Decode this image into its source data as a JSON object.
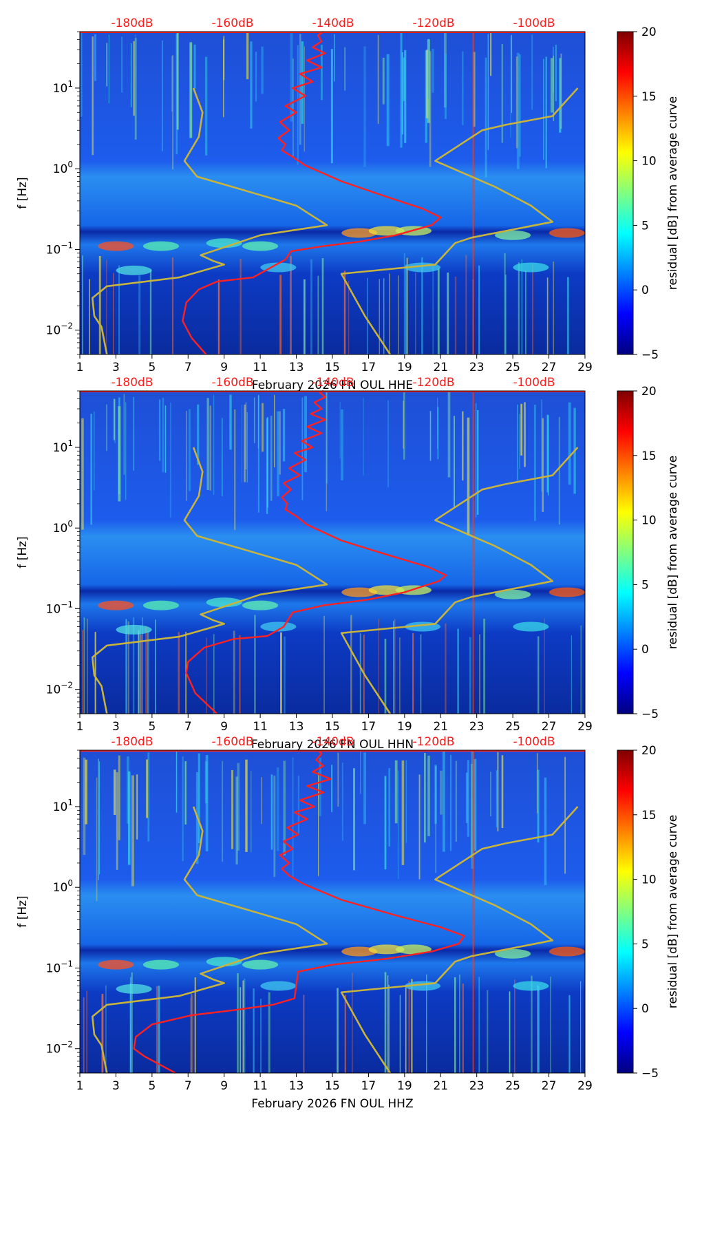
{
  "chart_data": [
    {
      "type": "heatmap",
      "component": "HHE",
      "xlabel": "February 2026 FN OUL  HHE",
      "ylabel": "f [Hz]",
      "x_ticks": [
        "1",
        "3",
        "5",
        "7",
        "9",
        "11",
        "13",
        "15",
        "17",
        "19",
        "21",
        "23",
        "25",
        "27",
        "29"
      ],
      "x_range": [
        1,
        29
      ],
      "y_range_hz": [
        0.005,
        50
      ],
      "y_ticks": [
        {
          "exp": -2,
          "value": 0.01
        },
        {
          "exp": -1,
          "value": 0.1
        },
        {
          "exp": 0,
          "value": 1
        },
        {
          "exp": 1,
          "value": 10
        }
      ],
      "top_ticks": [
        "-180dB",
        "-160dB",
        "-140dB",
        "-120dB",
        "-100dB"
      ],
      "colorbar": {
        "label": "residual [dB] from average curve",
        "ticks": [
          "−5",
          "0",
          "5",
          "10",
          "15",
          "20"
        ],
        "range": [
          -5,
          20
        ]
      },
      "series": [
        {
          "name": "average PSD",
          "color": "#ff2020",
          "points": [
            [
              8.0,
              0.005
            ],
            [
              7.2,
              0.008
            ],
            [
              6.7,
              0.013
            ],
            [
              6.9,
              0.022
            ],
            [
              7.6,
              0.032
            ],
            [
              8.6,
              0.04
            ],
            [
              10.6,
              0.045
            ],
            [
              11.6,
              0.06
            ],
            [
              12.4,
              0.075
            ],
            [
              12.7,
              0.095
            ],
            [
              14.5,
              0.11
            ],
            [
              16.5,
              0.125
            ],
            [
              18.5,
              0.15
            ],
            [
              20.5,
              0.2
            ],
            [
              21.0,
              0.25
            ],
            [
              20.0,
              0.32
            ],
            [
              18.0,
              0.45
            ],
            [
              15.5,
              0.7
            ],
            [
              13.5,
              1.1
            ],
            [
              12.8,
              1.4
            ],
            [
              12.2,
              1.7
            ],
            [
              12.4,
              2.0
            ],
            [
              12.0,
              2.4
            ],
            [
              12.6,
              3.0
            ],
            [
              12.1,
              3.8
            ],
            [
              13.0,
              5.0
            ],
            [
              12.4,
              6.0
            ],
            [
              13.5,
              8.0
            ],
            [
              12.8,
              10.0
            ],
            [
              13.9,
              12.0
            ],
            [
              13.2,
              15.0
            ],
            [
              14.4,
              18.0
            ],
            [
              13.6,
              22.0
            ],
            [
              14.6,
              27.0
            ],
            [
              13.9,
              32.0
            ],
            [
              14.4,
              38.0
            ],
            [
              14.2,
              45.0
            ],
            [
              14.5,
              50.0
            ]
          ]
        },
        {
          "name": "noise model lower",
          "color": "#c8b43c",
          "points": [
            [
              7.3,
              10.0
            ],
            [
              7.8,
              5.0
            ],
            [
              7.6,
              2.5
            ],
            [
              6.8,
              1.25
            ],
            [
              7.5,
              0.8
            ],
            [
              10.0,
              0.55
            ],
            [
              13.0,
              0.35
            ],
            [
              14.7,
              0.2
            ],
            [
              11.0,
              0.15
            ],
            [
              7.7,
              0.085
            ],
            [
              8.4,
              0.072
            ],
            [
              9.0,
              0.065
            ],
            [
              6.5,
              0.045
            ],
            [
              2.5,
              0.035
            ],
            [
              1.7,
              0.025
            ],
            [
              1.8,
              0.015
            ],
            [
              2.2,
              0.011
            ],
            [
              2.5,
              0.005
            ]
          ]
        },
        {
          "name": "noise model upper",
          "color": "#c8b43c",
          "points": [
            [
              28.6,
              10.0
            ],
            [
              27.2,
              4.5
            ],
            [
              24.6,
              3.5
            ],
            [
              23.3,
              3.0
            ],
            [
              20.7,
              1.25
            ],
            [
              24.0,
              0.6
            ],
            [
              26.0,
              0.35
            ],
            [
              27.2,
              0.22
            ],
            [
              25.2,
              0.18
            ],
            [
              22.7,
              0.14
            ],
            [
              21.8,
              0.12
            ],
            [
              20.7,
              0.065
            ],
            [
              15.5,
              0.05
            ],
            [
              16.8,
              0.015
            ],
            [
              18.2,
              0.005
            ]
          ]
        }
      ]
    },
    {
      "type": "heatmap",
      "component": "HHN",
      "xlabel": "February 2026 FN OUL  HHN",
      "ylabel": "f [Hz]",
      "x_ticks": [
        "1",
        "3",
        "5",
        "7",
        "9",
        "11",
        "13",
        "15",
        "17",
        "19",
        "21",
        "23",
        "25",
        "27",
        "29"
      ],
      "x_range": [
        1,
        29
      ],
      "y_range_hz": [
        0.005,
        50
      ],
      "y_ticks": [
        {
          "exp": -2,
          "value": 0.01
        },
        {
          "exp": -1,
          "value": 0.1
        },
        {
          "exp": 0,
          "value": 1
        },
        {
          "exp": 1,
          "value": 10
        }
      ],
      "top_ticks": [
        "-180dB",
        "-160dB",
        "-140dB",
        "-120dB",
        "-100dB"
      ],
      "colorbar": {
        "label": "residual [dB] from average curve",
        "ticks": [
          "−5",
          "0",
          "5",
          "10",
          "15",
          "20"
        ],
        "range": [
          -5,
          20
        ]
      },
      "series": [
        {
          "name": "average PSD",
          "color": "#ff2020",
          "points": [
            [
              8.6,
              0.005
            ],
            [
              7.4,
              0.009
            ],
            [
              6.9,
              0.016
            ],
            [
              7.0,
              0.022
            ],
            [
              7.9,
              0.033
            ],
            [
              9.5,
              0.042
            ],
            [
              11.4,
              0.046
            ],
            [
              12.3,
              0.06
            ],
            [
              12.8,
              0.09
            ],
            [
              14.5,
              0.11
            ],
            [
              17.0,
              0.13
            ],
            [
              19.0,
              0.16
            ],
            [
              20.9,
              0.22
            ],
            [
              21.3,
              0.26
            ],
            [
              20.3,
              0.33
            ],
            [
              18.0,
              0.47
            ],
            [
              15.5,
              0.7
            ],
            [
              13.6,
              1.1
            ],
            [
              13.0,
              1.4
            ],
            [
              12.4,
              1.7
            ],
            [
              12.5,
              2.0
            ],
            [
              12.2,
              2.4
            ],
            [
              12.7,
              3.0
            ],
            [
              12.3,
              3.6
            ],
            [
              13.2,
              4.5
            ],
            [
              12.6,
              5.5
            ],
            [
              13.5,
              7.0
            ],
            [
              12.9,
              8.5
            ],
            [
              13.9,
              10.0
            ],
            [
              13.3,
              12.0
            ],
            [
              14.4,
              15.0
            ],
            [
              13.6,
              18.0
            ],
            [
              14.6,
              22.0
            ],
            [
              13.8,
              26.0
            ],
            [
              14.4,
              30.0
            ],
            [
              14.0,
              36.0
            ],
            [
              14.6,
              42.0
            ],
            [
              14.3,
              48.0
            ],
            [
              14.5,
              50.0
            ]
          ]
        },
        {
          "name": "noise model lower",
          "color": "#c8b43c",
          "points": [
            [
              7.3,
              10.0
            ],
            [
              7.8,
              5.0
            ],
            [
              7.6,
              2.5
            ],
            [
              6.8,
              1.25
            ],
            [
              7.5,
              0.8
            ],
            [
              10.0,
              0.55
            ],
            [
              13.0,
              0.35
            ],
            [
              14.7,
              0.2
            ],
            [
              11.0,
              0.15
            ],
            [
              7.7,
              0.085
            ],
            [
              8.4,
              0.072
            ],
            [
              9.0,
              0.065
            ],
            [
              6.5,
              0.045
            ],
            [
              2.5,
              0.035
            ],
            [
              1.7,
              0.025
            ],
            [
              1.8,
              0.015
            ],
            [
              2.2,
              0.011
            ],
            [
              2.5,
              0.005
            ]
          ]
        },
        {
          "name": "noise model upper",
          "color": "#c8b43c",
          "points": [
            [
              28.6,
              10.0
            ],
            [
              27.2,
              4.5
            ],
            [
              24.6,
              3.5
            ],
            [
              23.3,
              3.0
            ],
            [
              20.7,
              1.25
            ],
            [
              24.0,
              0.6
            ],
            [
              26.0,
              0.35
            ],
            [
              27.2,
              0.22
            ],
            [
              25.2,
              0.18
            ],
            [
              22.7,
              0.14
            ],
            [
              21.8,
              0.12
            ],
            [
              20.7,
              0.065
            ],
            [
              15.5,
              0.05
            ],
            [
              16.8,
              0.015
            ],
            [
              18.2,
              0.005
            ]
          ]
        }
      ]
    },
    {
      "type": "heatmap",
      "component": "HHZ",
      "xlabel": "February 2026 FN OUL  HHZ",
      "ylabel": "f [Hz]",
      "x_ticks": [
        "1",
        "3",
        "5",
        "7",
        "9",
        "11",
        "13",
        "15",
        "17",
        "19",
        "21",
        "23",
        "25",
        "27",
        "29"
      ],
      "x_range": [
        1,
        29
      ],
      "y_range_hz": [
        0.005,
        50
      ],
      "y_ticks": [
        {
          "exp": -2,
          "value": 0.01
        },
        {
          "exp": -1,
          "value": 0.1
        },
        {
          "exp": 0,
          "value": 1
        },
        {
          "exp": 1,
          "value": 10
        }
      ],
      "top_ticks": [
        "-180dB",
        "-160dB",
        "-140dB",
        "-120dB",
        "-100dB"
      ],
      "colorbar": {
        "label": "residual [dB] from average curve",
        "ticks": [
          "−5",
          "0",
          "5",
          "10",
          "15",
          "20"
        ],
        "range": [
          -5,
          20
        ]
      },
      "series": [
        {
          "name": "average PSD",
          "color": "#ff2020",
          "points": [
            [
              6.3,
              0.005
            ],
            [
              4.6,
              0.008
            ],
            [
              4.0,
              0.01
            ],
            [
              4.1,
              0.014
            ],
            [
              5.0,
              0.02
            ],
            [
              7.2,
              0.026
            ],
            [
              9.5,
              0.03
            ],
            [
              11.7,
              0.035
            ],
            [
              12.9,
              0.042
            ],
            [
              13.1,
              0.09
            ],
            [
              15.0,
              0.11
            ],
            [
              18.0,
              0.13
            ],
            [
              20.5,
              0.16
            ],
            [
              22.0,
              0.2
            ],
            [
              22.3,
              0.25
            ],
            [
              21.0,
              0.32
            ],
            [
              18.5,
              0.45
            ],
            [
              15.5,
              0.7
            ],
            [
              13.4,
              1.1
            ],
            [
              12.6,
              1.4
            ],
            [
              12.2,
              1.7
            ],
            [
              12.6,
              2.0
            ],
            [
              12.1,
              2.5
            ],
            [
              12.8,
              3.0
            ],
            [
              12.3,
              3.7
            ],
            [
              13.1,
              4.5
            ],
            [
              12.5,
              5.5
            ],
            [
              13.6,
              7.0
            ],
            [
              12.9,
              8.5
            ],
            [
              14.0,
              10.0
            ],
            [
              13.2,
              12.0
            ],
            [
              14.5,
              15.0
            ],
            [
              13.6,
              18.0
            ],
            [
              14.9,
              22.0
            ],
            [
              13.9,
              27.0
            ],
            [
              14.5,
              32.0
            ],
            [
              14.1,
              38.0
            ],
            [
              14.4,
              45.0
            ],
            [
              14.2,
              50.0
            ]
          ]
        },
        {
          "name": "noise model lower",
          "color": "#c8b43c",
          "points": [
            [
              7.3,
              10.0
            ],
            [
              7.8,
              5.0
            ],
            [
              7.6,
              2.5
            ],
            [
              6.8,
              1.25
            ],
            [
              7.5,
              0.8
            ],
            [
              10.0,
              0.55
            ],
            [
              13.0,
              0.35
            ],
            [
              14.7,
              0.2
            ],
            [
              11.0,
              0.15
            ],
            [
              7.7,
              0.085
            ],
            [
              8.4,
              0.072
            ],
            [
              9.0,
              0.065
            ],
            [
              6.5,
              0.045
            ],
            [
              2.5,
              0.035
            ],
            [
              1.7,
              0.025
            ],
            [
              1.8,
              0.015
            ],
            [
              2.2,
              0.011
            ],
            [
              2.5,
              0.005
            ]
          ]
        },
        {
          "name": "noise model upper",
          "color": "#c8b43c",
          "points": [
            [
              28.6,
              10.0
            ],
            [
              27.2,
              4.5
            ],
            [
              24.6,
              3.5
            ],
            [
              23.3,
              3.0
            ],
            [
              20.7,
              1.25
            ],
            [
              24.0,
              0.6
            ],
            [
              26.0,
              0.35
            ],
            [
              27.2,
              0.22
            ],
            [
              25.2,
              0.18
            ],
            [
              22.7,
              0.14
            ],
            [
              21.8,
              0.12
            ],
            [
              20.7,
              0.065
            ],
            [
              15.5,
              0.05
            ],
            [
              16.8,
              0.015
            ],
            [
              18.2,
              0.005
            ]
          ]
        }
      ]
    }
  ]
}
